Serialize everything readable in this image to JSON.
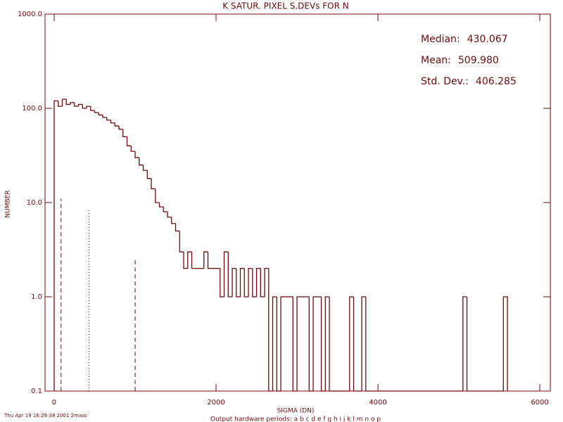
{
  "chart_data": {
    "type": "histogram",
    "title": "K SATUR. PIXEL S.DEVs FOR N",
    "xlabel": "SIGMA (DN)",
    "ylabel": "NUMBER",
    "color": "#6e0a0a",
    "log_y": true,
    "xlim": [
      -113,
      6130
    ],
    "ylim": [
      0.1,
      1000
    ],
    "xticks": [
      0,
      2000,
      4000,
      6000
    ],
    "yticks": [
      0.1,
      {
        "value": 1,
        "label": "1.0"
      },
      {
        "value": 10,
        "label": "10.0"
      },
      {
        "value": 100,
        "label": "100.0"
      },
      {
        "value": 1000,
        "label": "1000.0"
      }
    ],
    "bins": [
      0,
      50,
      100,
      150,
      200,
      250,
      300,
      350,
      400,
      450,
      500,
      550,
      600,
      650,
      700,
      750,
      800,
      850,
      900,
      950,
      1000,
      1050,
      1100,
      1150,
      1200,
      1250,
      1300,
      1350,
      1400,
      1450,
      1500,
      1550,
      1600,
      1650,
      1700,
      1750,
      1800,
      1850,
      1900,
      1950,
      2000,
      2050,
      2100,
      2150,
      2200,
      2250,
      2300,
      2350,
      2400,
      2450,
      2500,
      2550,
      2600,
      2650,
      2700,
      2750,
      2800,
      2850,
      2900,
      2950,
      3000,
      3050,
      3100,
      3150,
      3200,
      3250,
      3300,
      3350,
      3400,
      3450,
      3500,
      3550,
      3600,
      3650,
      3700,
      3750,
      3800,
      3850,
      5050,
      5100,
      5550,
      5600
    ],
    "counts": [
      120,
      105,
      125,
      110,
      115,
      105,
      110,
      100,
      105,
      95,
      90,
      85,
      80,
      75,
      70,
      65,
      60,
      50,
      40,
      35,
      30,
      25,
      22,
      18,
      14,
      10,
      9,
      8,
      7,
      6,
      5,
      3,
      2,
      3,
      2,
      2,
      2,
      3,
      2,
      2,
      2,
      1,
      3,
      1,
      2,
      1,
      2,
      1,
      2,
      1,
      2,
      1,
      2,
      0,
      1,
      0,
      1,
      1,
      1,
      0,
      1,
      1,
      1,
      0,
      1,
      1,
      0,
      1,
      0,
      0,
      0,
      0,
      0,
      1,
      0,
      0,
      1,
      0,
      1,
      0,
      1
    ],
    "reference_lines": [
      {
        "x": 0,
        "top": 11,
        "style": "dashed"
      },
      {
        "x": 85,
        "top": 11,
        "style": "dashed"
      },
      {
        "x": 430,
        "top": 8.5,
        "style": "dotted"
      },
      {
        "x": 1000,
        "top": 2.6,
        "style": "dashed"
      }
    ],
    "stats": [
      {
        "label": "Median:",
        "value": "430.067"
      },
      {
        "label": "Mean:",
        "value": "509.980"
      },
      {
        "label": "Std. Dev.:",
        "value": "406.285"
      }
    ],
    "footer_left": "Thu Apr 19 16:29:38 2001 2mass",
    "footer_center": "Output hardware periods: a b c d e f g h i j k l m n o p"
  }
}
